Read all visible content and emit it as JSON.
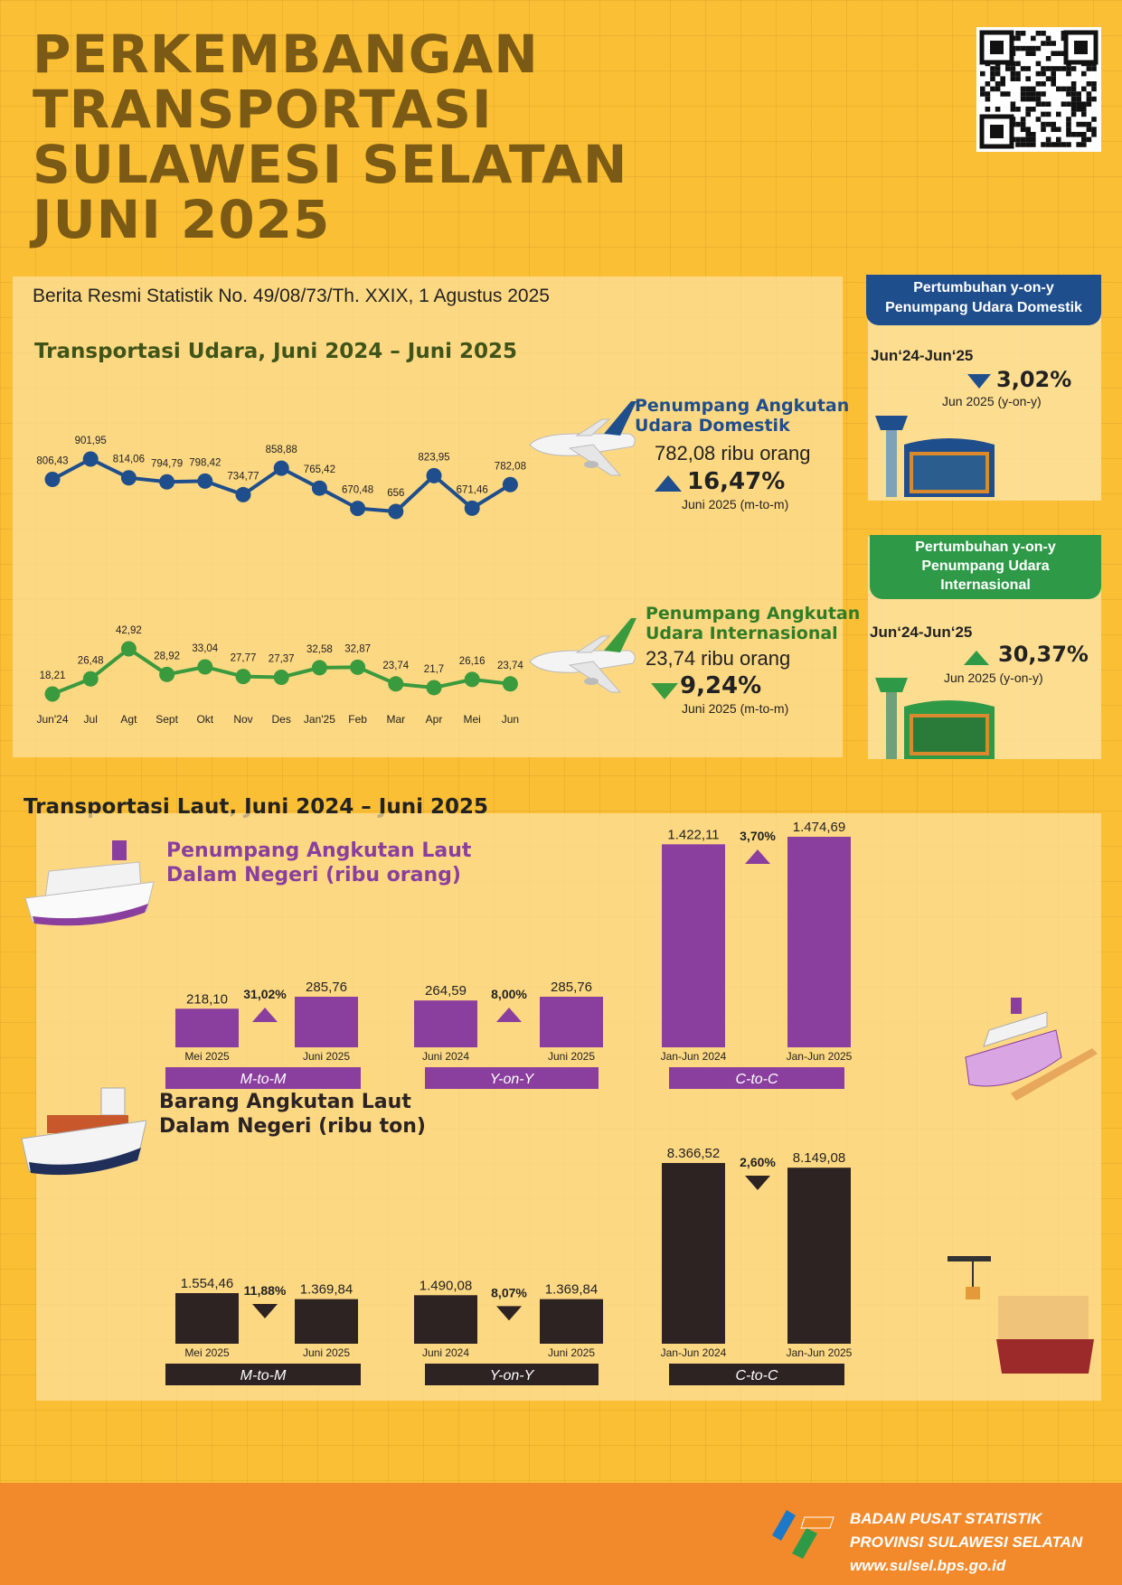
{
  "title": [
    "PERKEMBANGAN",
    "TRANSPORTASI",
    "SULAWESI SELATAN",
    "JUNI 2025"
  ],
  "brs": "Berita Resmi Statistik No. 49/08/73/Th. XXIX, 1 Agustus 2025",
  "air": {
    "heading": "Transportasi Udara, Juni 2024 – Juni 2025",
    "domestic": {
      "label1": "Penumpang Angkutan",
      "label2": "Udara Domestik",
      "value": "782,08 ribu orang",
      "pct": "16,47%",
      "period": "Juni 2025 (m-to-m)"
    },
    "international": {
      "label1": "Penumpang Angkutan",
      "label2": "Udara Internasional",
      "value": "23,74 ribu orang",
      "pct": "9,24%",
      "period": "Juni 2025 (m-to-m)"
    }
  },
  "side": {
    "dom": {
      "head1": "Pertumbuhan y-on-y",
      "head2": "Penumpang Udara Domestik",
      "range": "Jun‘24-Jun‘25",
      "pct": "3,02%",
      "period": "Jun 2025 (y-on-y)"
    },
    "intl": {
      "head1": "Pertumbuhan y-on-y",
      "head2": "Penumpang Udara",
      "head3": "Internasional",
      "range": "Jun‘24-Jun‘25",
      "pct": "30,37%",
      "period": "Jun 2025 (y-on-y)"
    }
  },
  "sea": {
    "heading": "Transportasi Laut, Juni 2024 – Juni 2025",
    "pass_title1": "Penumpang Angkutan Laut",
    "pass_title2": "Dalam Negeri (ribu orang)",
    "goods_title1": "Barang Angkutan Laut",
    "goods_title2": "Dalam Negeri (ribu ton)"
  },
  "footer": {
    "org1": "BADAN PUSAT STATISTIK",
    "org2": "PROVINSI SULAWESI SELATAN",
    "url": "www.sulsel.bps.go.id"
  },
  "colors": {
    "domestic": "#1f4e8c",
    "international": "#3a9a3e",
    "passenger": "#8a3f9e",
    "goods": "#2e2323",
    "side_dom": "#1f4e8c",
    "side_intl": "#2e9a48"
  },
  "chart_data": [
    {
      "type": "line",
      "name": "domestic",
      "categories": [
        "Jun'24",
        "Jul",
        "Agt",
        "Sept",
        "Okt",
        "Nov",
        "Des",
        "Jan'25",
        "Feb",
        "Mar",
        "Apr",
        "Mei",
        "Jun"
      ],
      "values": [
        806.43,
        901.95,
        814.06,
        794.79,
        798.42,
        734.77,
        858.88,
        765.42,
        670.48,
        656,
        823.95,
        671.46,
        782.08
      ],
      "labels": [
        "806,43",
        "901,95",
        "814,06",
        "794,79",
        "798,42",
        "734,77",
        "858,88",
        "765,42",
        "670,48",
        "656",
        "823,95",
        "671,46",
        "782,08"
      ]
    },
    {
      "type": "line",
      "name": "international",
      "categories": [
        "Jun'24",
        "Jul",
        "Agt",
        "Sept",
        "Okt",
        "Nov",
        "Des",
        "Jan'25",
        "Feb",
        "Mar",
        "Apr",
        "Mei",
        "Jun"
      ],
      "values": [
        18.21,
        26.48,
        42.92,
        28.92,
        33.04,
        27.77,
        27.37,
        32.58,
        32.87,
        23.74,
        21.7,
        26.16,
        23.74
      ],
      "labels": [
        "18,21",
        "26,48",
        "42,92",
        "28,92",
        "33,04",
        "27,77",
        "27,37",
        "32,58",
        "32,87",
        "23,74",
        "21,7",
        "26,16",
        "23,74"
      ]
    },
    {
      "type": "bar",
      "name": "passenger",
      "groups": [
        {
          "axis": "M-to-M",
          "change": "31,02%",
          "direction": "up",
          "categories": [
            "Mei 2025",
            "Juni 2025"
          ],
          "values": [
            218.1,
            285.76
          ],
          "labels": [
            "218,10",
            "285,76"
          ]
        },
        {
          "axis": "Y-on-Y",
          "change": "8,00%",
          "direction": "up",
          "categories": [
            "Juni 2024",
            "Juni 2025"
          ],
          "values": [
            264.59,
            285.76
          ],
          "labels": [
            "264,59",
            "285,76"
          ]
        },
        {
          "axis": "C-to-C",
          "change": "3,70%",
          "direction": "up",
          "categories": [
            "Jan-Jun 2024",
            "Jan-Jun 2025"
          ],
          "values": [
            1422.11,
            1474.69
          ],
          "labels": [
            "1.422,11",
            "1.474,69"
          ]
        }
      ]
    },
    {
      "type": "bar",
      "name": "goods",
      "groups": [
        {
          "axis": "M-to-M",
          "change": "11,88%",
          "direction": "down",
          "categories": [
            "Mei 2025",
            "Juni 2025"
          ],
          "values": [
            1554.46,
            1369.84
          ],
          "labels": [
            "1.554,46",
            "1.369,84"
          ]
        },
        {
          "axis": "Y-on-Y",
          "change": "8,07%",
          "direction": "down",
          "categories": [
            "Juni 2024",
            "Juni 2025"
          ],
          "values": [
            1490.08,
            1369.84
          ],
          "labels": [
            "1.490,08",
            "1.369,84"
          ]
        },
        {
          "axis": "C-to-C",
          "change": "2,60%",
          "direction": "down",
          "categories": [
            "Jan-Jun 2024",
            "Jan-Jun 2025"
          ],
          "values": [
            8366.52,
            8149.08
          ],
          "labels": [
            "8.366,52",
            "8.149,08"
          ]
        }
      ]
    }
  ]
}
